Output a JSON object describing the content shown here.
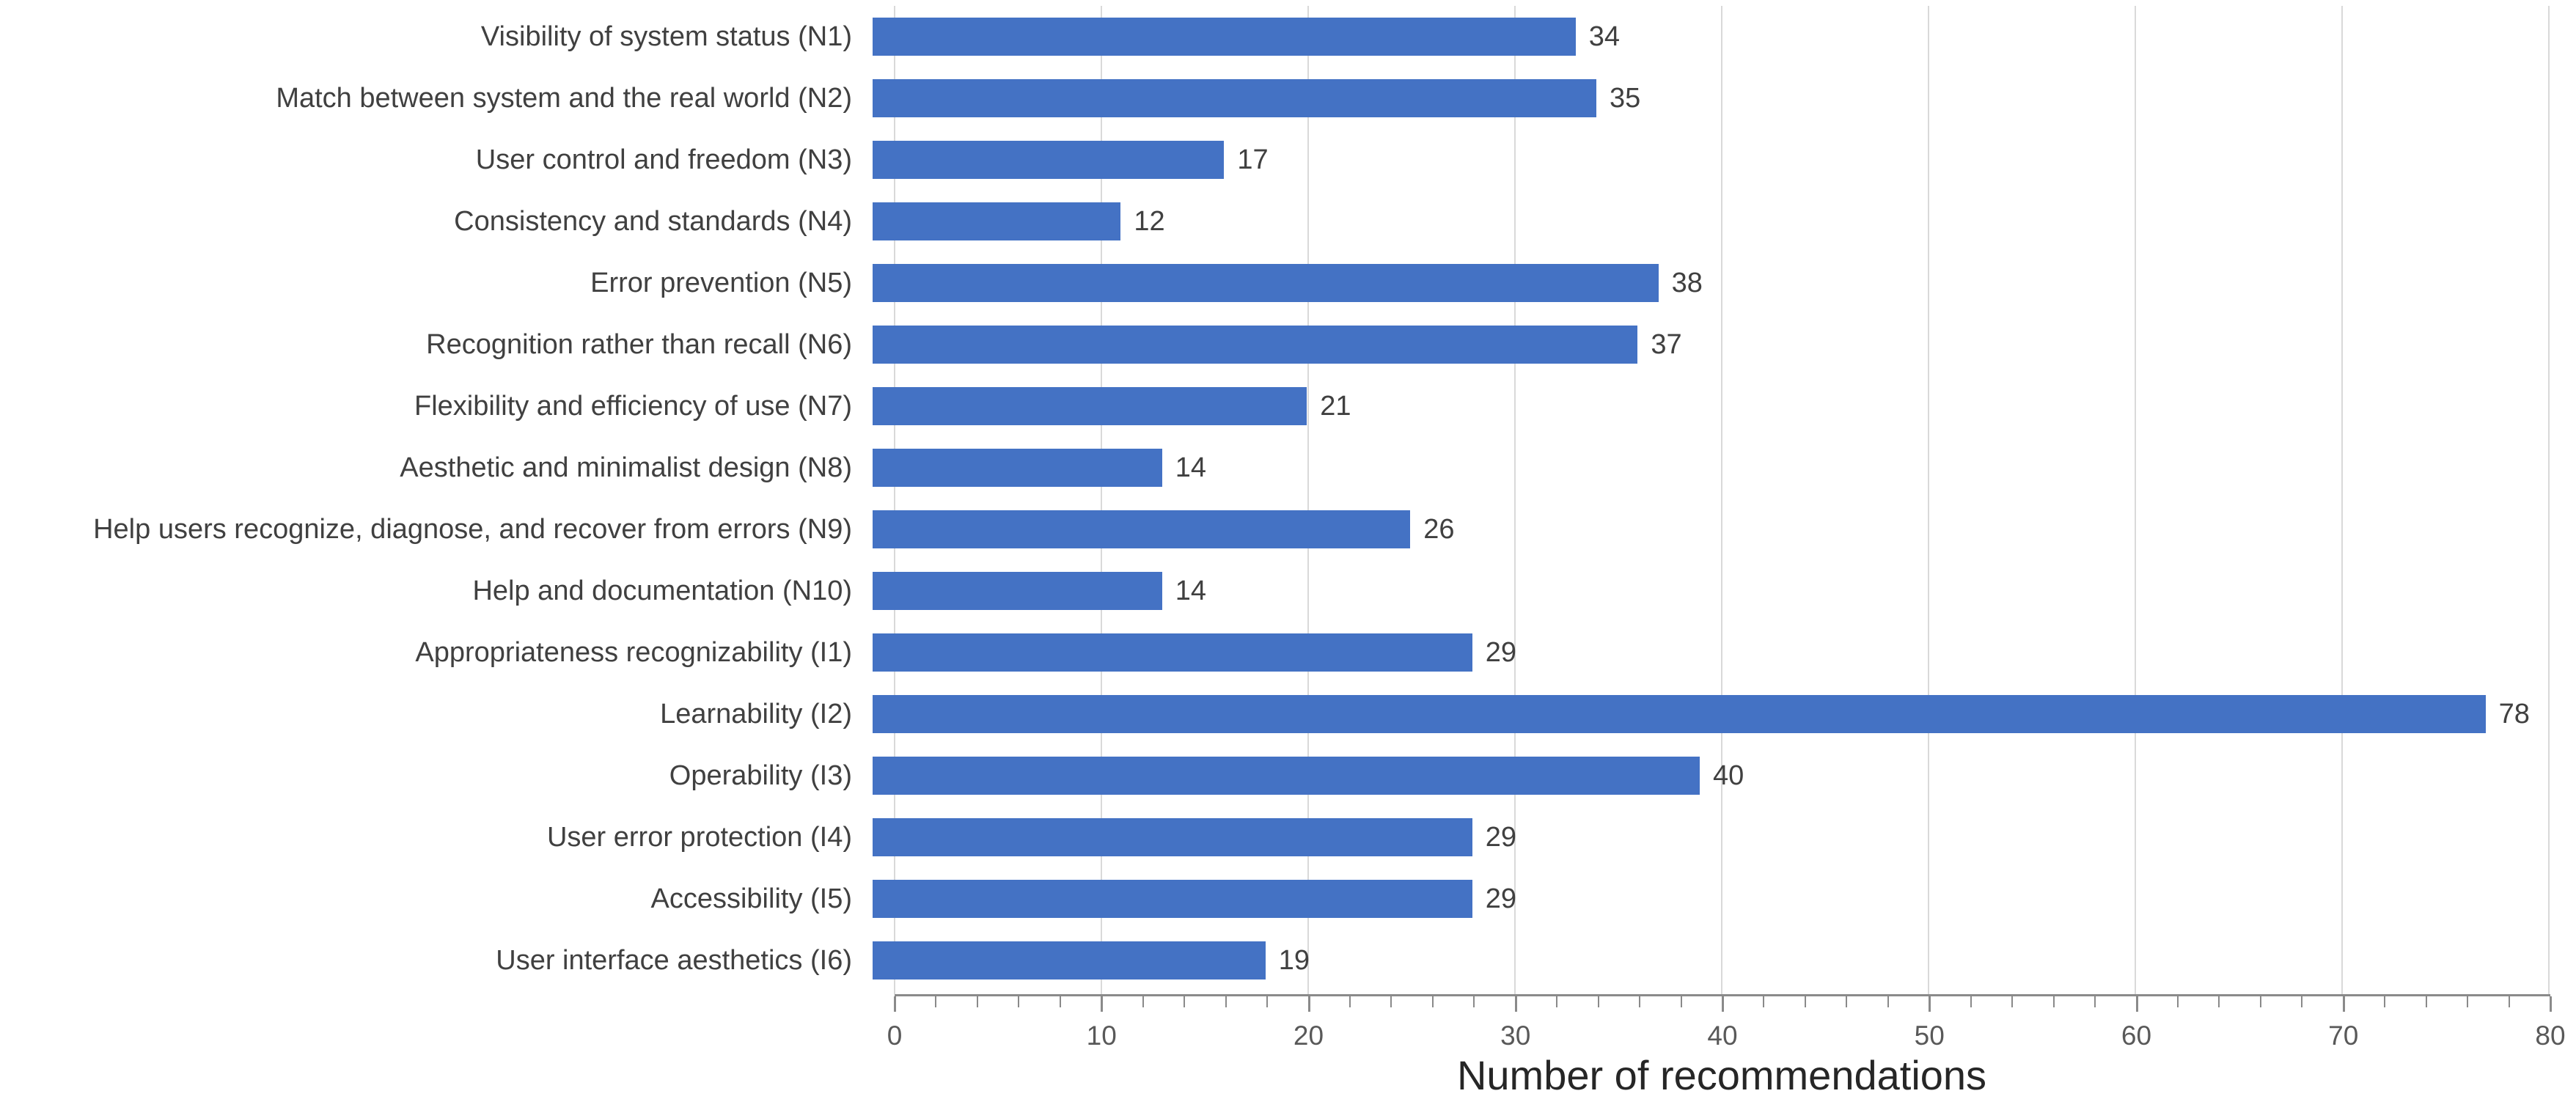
{
  "chart_data": {
    "type": "bar",
    "orientation": "horizontal",
    "categories": [
      "Visibility of system status (N1)",
      "Match between system and the real world (N2)",
      "User control and freedom (N3)",
      "Consistency and standards (N4)",
      "Error prevention (N5)",
      "Recognition rather than recall (N6)",
      "Flexibility and efficiency of use (N7)",
      "Aesthetic and minimalist design (N8)",
      "Help users recognize, diagnose, and recover from errors (N9)",
      "Help and documentation (N10)",
      "Appropriateness recognizability (I1)",
      "Learnability (I2)",
      "Operability (I3)",
      "User error protection (I4)",
      "Accessibility (I5)",
      "User interface aesthetics (I6)"
    ],
    "values": [
      34,
      35,
      17,
      12,
      38,
      37,
      21,
      14,
      26,
      14,
      29,
      78,
      40,
      29,
      29,
      19
    ],
    "xlabel": "Number of recommendations",
    "xlim": [
      0,
      80
    ],
    "x_major_ticks": [
      0,
      10,
      20,
      30,
      40,
      50,
      60,
      70,
      80
    ],
    "x_minor_tick_step": 2,
    "grid": "vertical-major-gridlines",
    "legend": "none",
    "bar_color": "#4472C4",
    "gridline_color": "#D9D9D9",
    "axis_line_color": "#8A8A8A",
    "tick_label_color": "#595959",
    "category_label_color": "#404040",
    "value_label_color": "#404040"
  }
}
